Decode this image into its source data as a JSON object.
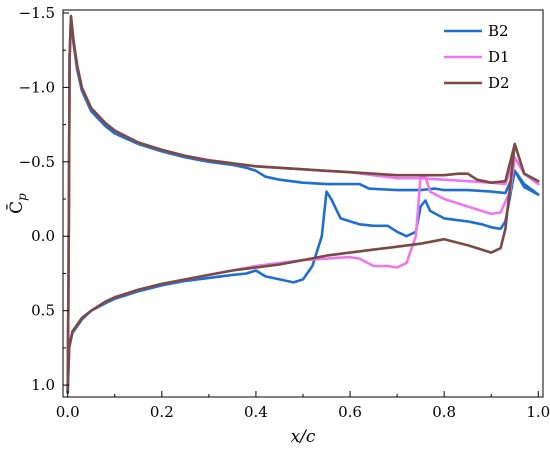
{
  "chart_data": {
    "type": "line",
    "title": "",
    "xlabel": "x/c",
    "ylabel": "C̄p",
    "xlim": [
      -0.01,
      1.01
    ],
    "ylim": [
      1.08,
      -1.52
    ],
    "y_inverted": true,
    "grid": false,
    "legend_position": "top-right",
    "x_ticks": [
      {
        "v": 0.0,
        "label": "0.0"
      },
      {
        "v": 0.2,
        "label": "0.2"
      },
      {
        "v": 0.4,
        "label": "0.4"
      },
      {
        "v": 0.6,
        "label": "0.6"
      },
      {
        "v": 0.8,
        "label": "0.8"
      },
      {
        "v": 1.0,
        "label": "1.0"
      }
    ],
    "y_ticks": [
      {
        "v": -1.5,
        "label": "−1.5"
      },
      {
        "v": -1.0,
        "label": "−1.0"
      },
      {
        "v": -0.5,
        "label": "−0.5"
      },
      {
        "v": 0.0,
        "label": "0.0"
      },
      {
        "v": 0.5,
        "label": "0.5"
      },
      {
        "v": 1.0,
        "label": "1.0"
      }
    ],
    "series": [
      {
        "name": "B2",
        "color": "#1f6fce",
        "upper": [
          [
            0.0,
            1.05
          ],
          [
            0.002,
            0.2
          ],
          [
            0.004,
            -1.2
          ],
          [
            0.007,
            -1.47
          ],
          [
            0.012,
            -1.3
          ],
          [
            0.02,
            -1.12
          ],
          [
            0.03,
            -0.98
          ],
          [
            0.05,
            -0.84
          ],
          [
            0.08,
            -0.74
          ],
          [
            0.1,
            -0.69
          ],
          [
            0.15,
            -0.62
          ],
          [
            0.2,
            -0.57
          ],
          [
            0.25,
            -0.53
          ],
          [
            0.3,
            -0.5
          ],
          [
            0.35,
            -0.48
          ],
          [
            0.38,
            -0.46
          ],
          [
            0.4,
            -0.44
          ],
          [
            0.42,
            -0.4
          ],
          [
            0.45,
            -0.38
          ],
          [
            0.5,
            -0.36
          ],
          [
            0.55,
            -0.35
          ],
          [
            0.6,
            -0.35
          ],
          [
            0.62,
            -0.35
          ],
          [
            0.64,
            -0.32
          ],
          [
            0.7,
            -0.31
          ],
          [
            0.75,
            -0.31
          ],
          [
            0.78,
            -0.32
          ],
          [
            0.8,
            -0.31
          ],
          [
            0.85,
            -0.31
          ],
          [
            0.9,
            -0.3
          ],
          [
            0.93,
            -0.29
          ],
          [
            0.95,
            -0.44
          ],
          [
            0.97,
            -0.33
          ],
          [
            1.0,
            -0.28
          ]
        ],
        "lower": [
          [
            0.0,
            1.05
          ],
          [
            0.003,
            0.75
          ],
          [
            0.01,
            0.65
          ],
          [
            0.03,
            0.56
          ],
          [
            0.05,
            0.5
          ],
          [
            0.08,
            0.45
          ],
          [
            0.1,
            0.42
          ],
          [
            0.15,
            0.37
          ],
          [
            0.2,
            0.33
          ],
          [
            0.25,
            0.3
          ],
          [
            0.3,
            0.28
          ],
          [
            0.35,
            0.26
          ],
          [
            0.38,
            0.25
          ],
          [
            0.4,
            0.23
          ],
          [
            0.42,
            0.27
          ],
          [
            0.45,
            0.29
          ],
          [
            0.48,
            0.31
          ],
          [
            0.5,
            0.29
          ],
          [
            0.52,
            0.2
          ],
          [
            0.54,
            0.0
          ],
          [
            0.55,
            -0.3
          ],
          [
            0.56,
            -0.25
          ],
          [
            0.58,
            -0.12
          ],
          [
            0.6,
            -0.1
          ],
          [
            0.62,
            -0.08
          ],
          [
            0.65,
            -0.07
          ],
          [
            0.68,
            -0.07
          ],
          [
            0.7,
            -0.03
          ],
          [
            0.72,
            0.0
          ],
          [
            0.74,
            -0.03
          ],
          [
            0.75,
            -0.2
          ],
          [
            0.76,
            -0.24
          ],
          [
            0.77,
            -0.17
          ],
          [
            0.8,
            -0.12
          ],
          [
            0.85,
            -0.1
          ],
          [
            0.88,
            -0.08
          ],
          [
            0.9,
            -0.06
          ],
          [
            0.92,
            -0.05
          ],
          [
            0.93,
            -0.1
          ],
          [
            0.95,
            -0.44
          ],
          [
            0.97,
            -0.35
          ],
          [
            1.0,
            -0.28
          ]
        ]
      },
      {
        "name": "D1",
        "color": "#ee77ee",
        "upper": [
          [
            0.0,
            1.05
          ],
          [
            0.002,
            0.2
          ],
          [
            0.004,
            -1.2
          ],
          [
            0.007,
            -1.47
          ],
          [
            0.012,
            -1.32
          ],
          [
            0.02,
            -1.15
          ],
          [
            0.03,
            -1.0
          ],
          [
            0.05,
            -0.86
          ],
          [
            0.08,
            -0.76
          ],
          [
            0.1,
            -0.71
          ],
          [
            0.15,
            -0.63
          ],
          [
            0.2,
            -0.58
          ],
          [
            0.25,
            -0.54
          ],
          [
            0.3,
            -0.51
          ],
          [
            0.35,
            -0.49
          ],
          [
            0.4,
            -0.47
          ],
          [
            0.45,
            -0.46
          ],
          [
            0.5,
            -0.45
          ],
          [
            0.55,
            -0.44
          ],
          [
            0.6,
            -0.43
          ],
          [
            0.65,
            -0.41
          ],
          [
            0.7,
            -0.39
          ],
          [
            0.75,
            -0.39
          ],
          [
            0.8,
            -0.38
          ],
          [
            0.85,
            -0.37
          ],
          [
            0.9,
            -0.36
          ],
          [
            0.93,
            -0.35
          ],
          [
            0.95,
            -0.53
          ],
          [
            0.97,
            -0.42
          ],
          [
            1.0,
            -0.35
          ]
        ],
        "lower": [
          [
            0.0,
            1.05
          ],
          [
            0.003,
            0.75
          ],
          [
            0.01,
            0.64
          ],
          [
            0.03,
            0.55
          ],
          [
            0.05,
            0.5
          ],
          [
            0.08,
            0.44
          ],
          [
            0.1,
            0.41
          ],
          [
            0.15,
            0.36
          ],
          [
            0.2,
            0.32
          ],
          [
            0.25,
            0.29
          ],
          [
            0.3,
            0.26
          ],
          [
            0.35,
            0.23
          ],
          [
            0.4,
            0.2
          ],
          [
            0.45,
            0.18
          ],
          [
            0.5,
            0.16
          ],
          [
            0.55,
            0.15
          ],
          [
            0.6,
            0.14
          ],
          [
            0.62,
            0.15
          ],
          [
            0.65,
            0.2
          ],
          [
            0.68,
            0.2
          ],
          [
            0.7,
            0.21
          ],
          [
            0.72,
            0.18
          ],
          [
            0.74,
            0.0
          ],
          [
            0.75,
            -0.41
          ],
          [
            0.76,
            -0.4
          ],
          [
            0.77,
            -0.3
          ],
          [
            0.8,
            -0.25
          ],
          [
            0.85,
            -0.2
          ],
          [
            0.9,
            -0.15
          ],
          [
            0.92,
            -0.16
          ],
          [
            0.94,
            -0.3
          ],
          [
            0.95,
            -0.53
          ],
          [
            0.97,
            -0.42
          ],
          [
            1.0,
            -0.35
          ]
        ]
      },
      {
        "name": "D2",
        "color": "#7a4a45",
        "upper": [
          [
            0.0,
            1.05
          ],
          [
            0.002,
            0.2
          ],
          [
            0.004,
            -1.2
          ],
          [
            0.007,
            -1.48
          ],
          [
            0.012,
            -1.32
          ],
          [
            0.02,
            -1.15
          ],
          [
            0.03,
            -1.0
          ],
          [
            0.05,
            -0.86
          ],
          [
            0.08,
            -0.76
          ],
          [
            0.1,
            -0.71
          ],
          [
            0.15,
            -0.63
          ],
          [
            0.2,
            -0.58
          ],
          [
            0.25,
            -0.54
          ],
          [
            0.3,
            -0.51
          ],
          [
            0.35,
            -0.49
          ],
          [
            0.4,
            -0.47
          ],
          [
            0.45,
            -0.46
          ],
          [
            0.5,
            -0.45
          ],
          [
            0.55,
            -0.44
          ],
          [
            0.6,
            -0.43
          ],
          [
            0.65,
            -0.42
          ],
          [
            0.7,
            -0.41
          ],
          [
            0.75,
            -0.41
          ],
          [
            0.8,
            -0.41
          ],
          [
            0.83,
            -0.42
          ],
          [
            0.85,
            -0.42
          ],
          [
            0.87,
            -0.38
          ],
          [
            0.9,
            -0.36
          ],
          [
            0.93,
            -0.37
          ],
          [
            0.95,
            -0.62
          ],
          [
            0.97,
            -0.42
          ],
          [
            1.0,
            -0.37
          ]
        ],
        "lower": [
          [
            0.0,
            1.05
          ],
          [
            0.003,
            0.75
          ],
          [
            0.01,
            0.64
          ],
          [
            0.03,
            0.55
          ],
          [
            0.05,
            0.5
          ],
          [
            0.08,
            0.44
          ],
          [
            0.1,
            0.41
          ],
          [
            0.15,
            0.36
          ],
          [
            0.2,
            0.32
          ],
          [
            0.25,
            0.29
          ],
          [
            0.3,
            0.26
          ],
          [
            0.35,
            0.23
          ],
          [
            0.4,
            0.21
          ],
          [
            0.45,
            0.19
          ],
          [
            0.5,
            0.16
          ],
          [
            0.55,
            0.13
          ],
          [
            0.6,
            0.11
          ],
          [
            0.65,
            0.09
          ],
          [
            0.7,
            0.07
          ],
          [
            0.75,
            0.05
          ],
          [
            0.8,
            0.02
          ],
          [
            0.85,
            0.06
          ],
          [
            0.88,
            0.09
          ],
          [
            0.9,
            0.11
          ],
          [
            0.92,
            0.08
          ],
          [
            0.93,
            -0.05
          ],
          [
            0.95,
            -0.62
          ],
          [
            0.97,
            -0.42
          ],
          [
            1.0,
            -0.37
          ]
        ]
      }
    ]
  }
}
